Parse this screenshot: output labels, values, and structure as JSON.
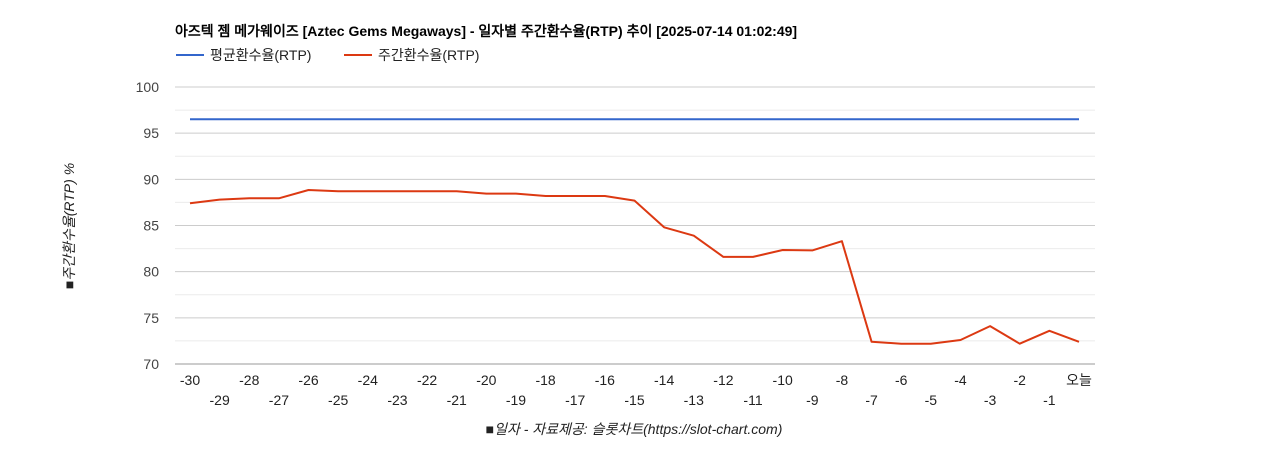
{
  "chart_data": {
    "type": "line",
    "title": "아즈텍 젬 메가웨이즈 [Aztec Gems Megaways] - 일자별 주간환수율(RTP) 추이 [2025-07-14 01:02:49]",
    "xlabel": "■일자 - 자료제공: 슬롯차트(https://slot-chart.com)",
    "ylabel": "■주간환수율(RTP) %",
    "ylim": [
      70,
      100
    ],
    "yticks": [
      "70",
      "75",
      "80",
      "85",
      "90",
      "95",
      "100"
    ],
    "grid": true,
    "legend_position": "top-left",
    "categories": [
      "-30",
      "-29",
      "-28",
      "-27",
      "-26",
      "-25",
      "-24",
      "-23",
      "-22",
      "-21",
      "-20",
      "-19",
      "-18",
      "-17",
      "-16",
      "-15",
      "-14",
      "-13",
      "-12",
      "-11",
      "-10",
      "-9",
      "-8",
      "-7",
      "-6",
      "-5",
      "-4",
      "-3",
      "-2",
      "-1",
      "오늘"
    ],
    "series": [
      {
        "name": "평균환수율(RTP)",
        "color": "#3366cc",
        "values": [
          96.5,
          96.5,
          96.5,
          96.5,
          96.5,
          96.5,
          96.5,
          96.5,
          96.5,
          96.5,
          96.5,
          96.5,
          96.5,
          96.5,
          96.5,
          96.5,
          96.5,
          96.5,
          96.5,
          96.5,
          96.5,
          96.5,
          96.5,
          96.5,
          96.5,
          96.5,
          96.5,
          96.5,
          96.5,
          96.5,
          96.5
        ]
      },
      {
        "name": "주간환수율(RTP)",
        "color": "#dc3912",
        "values": [
          87.4,
          87.8,
          87.95,
          87.95,
          88.85,
          88.7,
          88.7,
          88.7,
          88.7,
          88.7,
          88.45,
          88.45,
          88.2,
          88.2,
          88.2,
          87.7,
          84.8,
          83.9,
          81.6,
          81.6,
          82.35,
          82.3,
          83.3,
          72.4,
          72.2,
          72.2,
          72.6,
          74.1,
          72.2,
          73.6,
          72.4
        ]
      }
    ]
  }
}
